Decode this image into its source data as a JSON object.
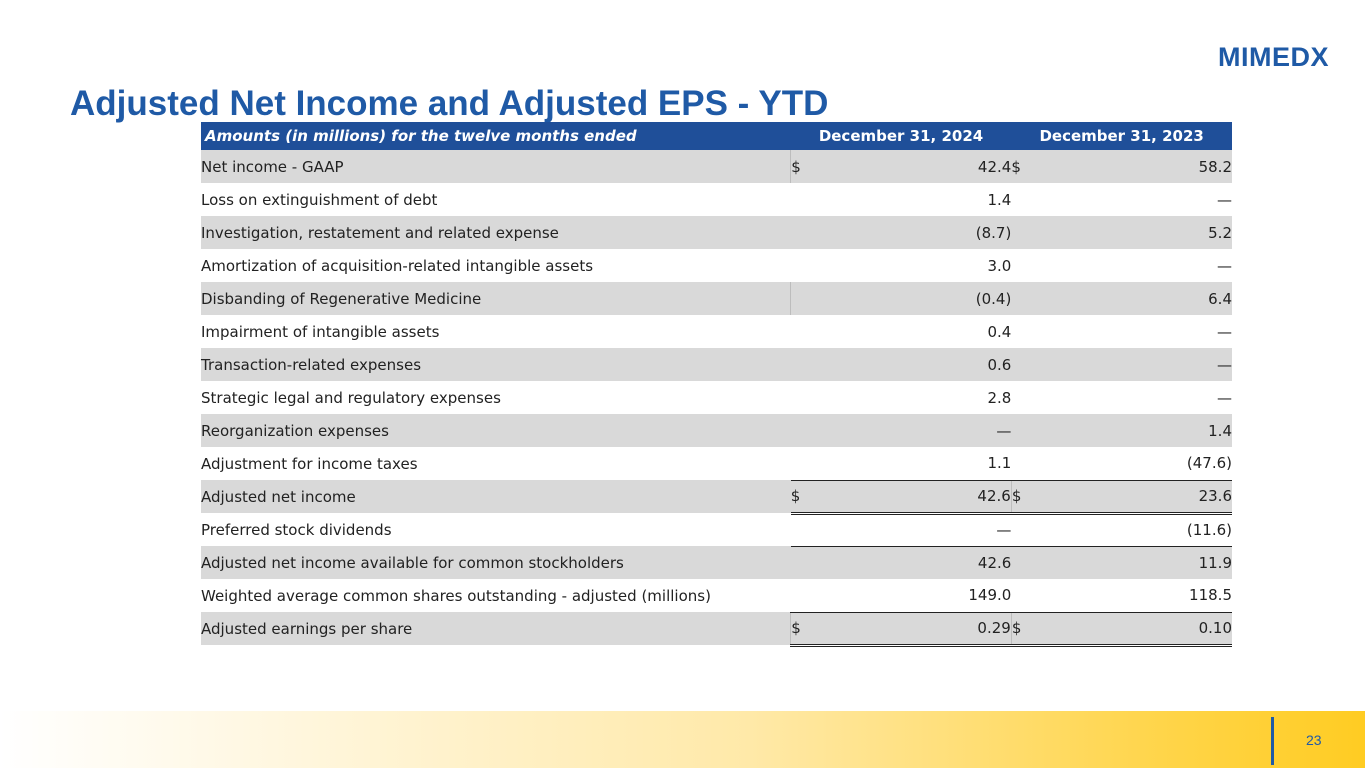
{
  "logo": {
    "text": "MIMEDX"
  },
  "title": "Adjusted Net Income and Adjusted EPS - YTD",
  "table": {
    "header": {
      "label": "Amounts (in millions) for the twelve months ended",
      "col1": "December 31, 2024",
      "col2": "December 31, 2023"
    },
    "rows": [
      {
        "label": "Net income - GAAP",
        "cur1": "$",
        "v1": "42.4",
        "cur2": "$",
        "v2": "58.2"
      },
      {
        "label": "Loss on extinguishment of debt",
        "cur1": "",
        "v1": "1.4",
        "cur2": "",
        "v2": "—"
      },
      {
        "label": "Investigation, restatement and related expense",
        "cur1": "",
        "v1": "(8.7)",
        "cur2": "",
        "v2": "5.2"
      },
      {
        "label": "Amortization of acquisition-related intangible assets",
        "cur1": "",
        "v1": "3.0",
        "cur2": "",
        "v2": "—"
      },
      {
        "label": "Disbanding of Regenerative Medicine",
        "cur1": "",
        "v1": "(0.4)",
        "cur2": "",
        "v2": "6.4"
      },
      {
        "label": "Impairment of intangible assets",
        "cur1": "",
        "v1": "0.4",
        "cur2": "",
        "v2": "—"
      },
      {
        "label": "Transaction-related expenses",
        "cur1": "",
        "v1": "0.6",
        "cur2": "",
        "v2": "—"
      },
      {
        "label": "Strategic legal and regulatory expenses",
        "cur1": "",
        "v1": "2.8",
        "cur2": "",
        "v2": "—"
      },
      {
        "label": "Reorganization expenses",
        "cur1": "",
        "v1": "—",
        "cur2": "",
        "v2": "1.4"
      },
      {
        "label": "Adjustment for income taxes",
        "cur1": "",
        "v1": "1.1",
        "cur2": "",
        "v2": "(47.6)"
      },
      {
        "label": "Adjusted net income",
        "cur1": "$",
        "v1": "42.6",
        "cur2": "$",
        "v2": "23.6"
      },
      {
        "label": "Preferred stock dividends",
        "cur1": "",
        "v1": "—",
        "cur2": "",
        "v2": "(11.6)"
      },
      {
        "label": "Adjusted net income available for common stockholders",
        "cur1": "",
        "v1": "42.6",
        "cur2": "",
        "v2": "11.9"
      },
      {
        "label": "Weighted average common shares outstanding - adjusted (millions)",
        "cur1": "",
        "v1": "149.0",
        "cur2": "",
        "v2": "118.5"
      },
      {
        "label": "Adjusted earnings per share",
        "cur1": "$",
        "v1": "0.29",
        "cur2": "$",
        "v2": "0.10"
      }
    ]
  },
  "page_number": "23",
  "colors": {
    "brand_blue": "#1f5aa6",
    "header_blue": "#1f4f99",
    "row_shade": "#d9d9d9",
    "accent_yellow": "#ffcc22"
  }
}
